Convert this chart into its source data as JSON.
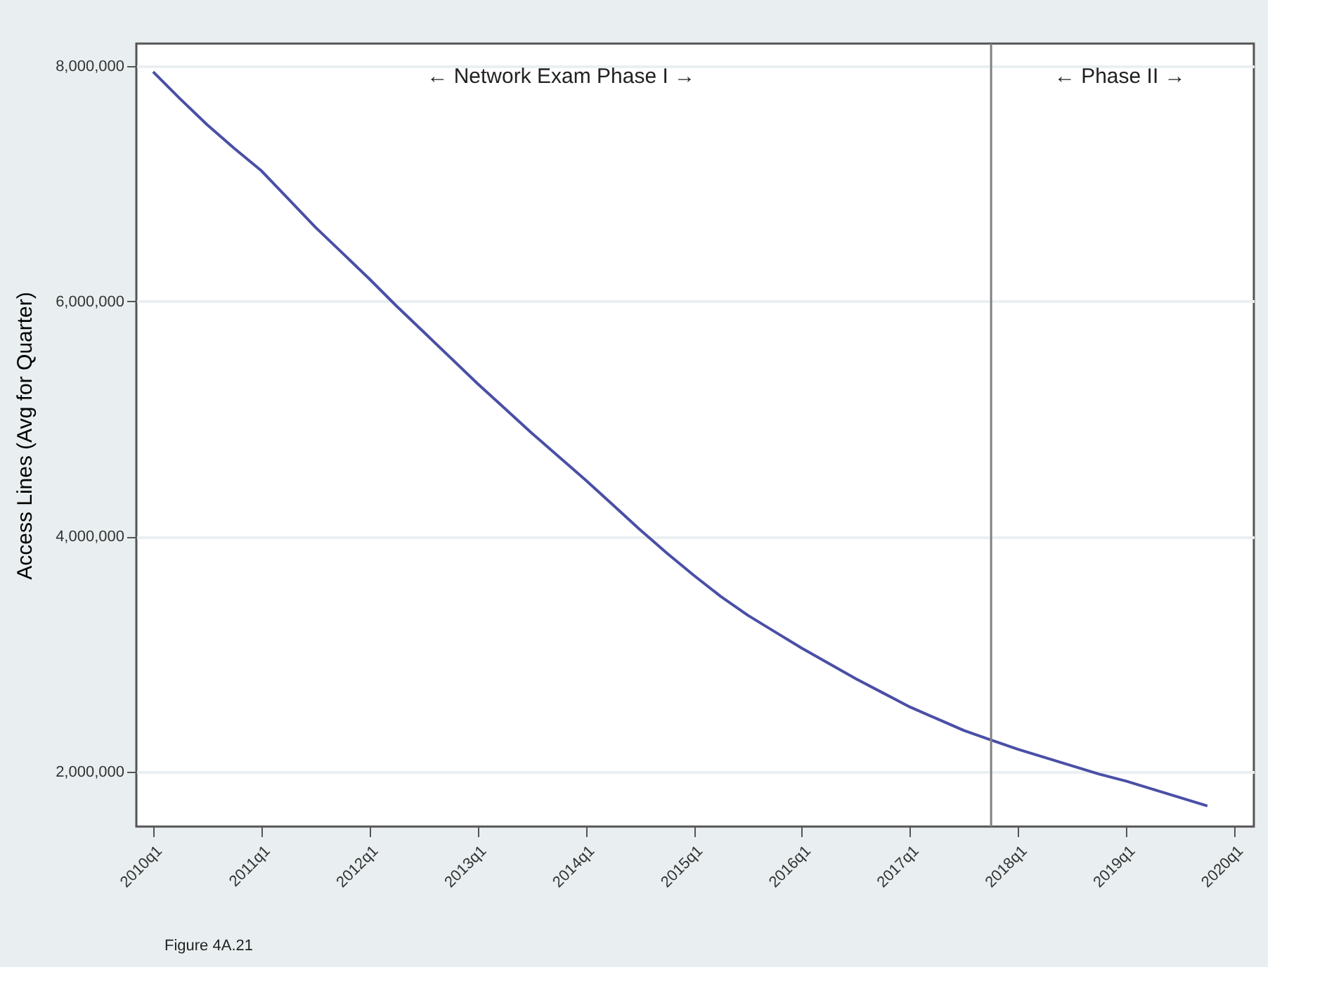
{
  "chart_data": {
    "type": "line",
    "ylabel": "Access Lines (Avg for Quarter)",
    "categories": [
      "2010q1",
      null,
      null,
      null,
      "2011q1",
      null,
      null,
      null,
      "2012q1",
      null,
      null,
      null,
      "2013q1",
      null,
      null,
      null,
      "2014q1",
      null,
      null,
      null,
      "2015q1",
      null,
      null,
      null,
      "2016q1",
      null,
      null,
      null,
      "2017q1",
      null,
      null,
      null,
      "2018q1",
      null,
      null,
      null,
      "2019q1",
      null,
      null,
      null,
      "2020q1"
    ],
    "series": [
      {
        "color": "#4a4fa6",
        "values": [
          7950000,
          7720000,
          7500000,
          7300000,
          7110000,
          6870000,
          6630000,
          6410000,
          6190000,
          5960000,
          5740000,
          5520000,
          5300000,
          5090000,
          4880000,
          4680000,
          4480000,
          4270000,
          4060000,
          3860000,
          3670000,
          3490000,
          3330000,
          3190000,
          3050000,
          2920000,
          2790000,
          2670000,
          2550000,
          2450000,
          2350000,
          2270000,
          2190000,
          2120000,
          2050000,
          1980000,
          1920000,
          1850000,
          1780000,
          1710000,
          null
        ]
      }
    ],
    "ylim": [
      1534000,
      8190000
    ],
    "yticks": [
      {
        "value": 2000000,
        "label": "2,000,000"
      },
      {
        "value": 4000000,
        "label": "4,000,000"
      },
      {
        "value": 6000000,
        "label": "6,000,000"
      },
      {
        "value": 8000000,
        "label": "8,000,000"
      }
    ],
    "annotations": [
      "← Network Exam Phase I →",
      "← Phase II →",
      "Figure 4A.21"
    ],
    "grid": "y",
    "line_style": "solid",
    "marker": "none"
  }
}
